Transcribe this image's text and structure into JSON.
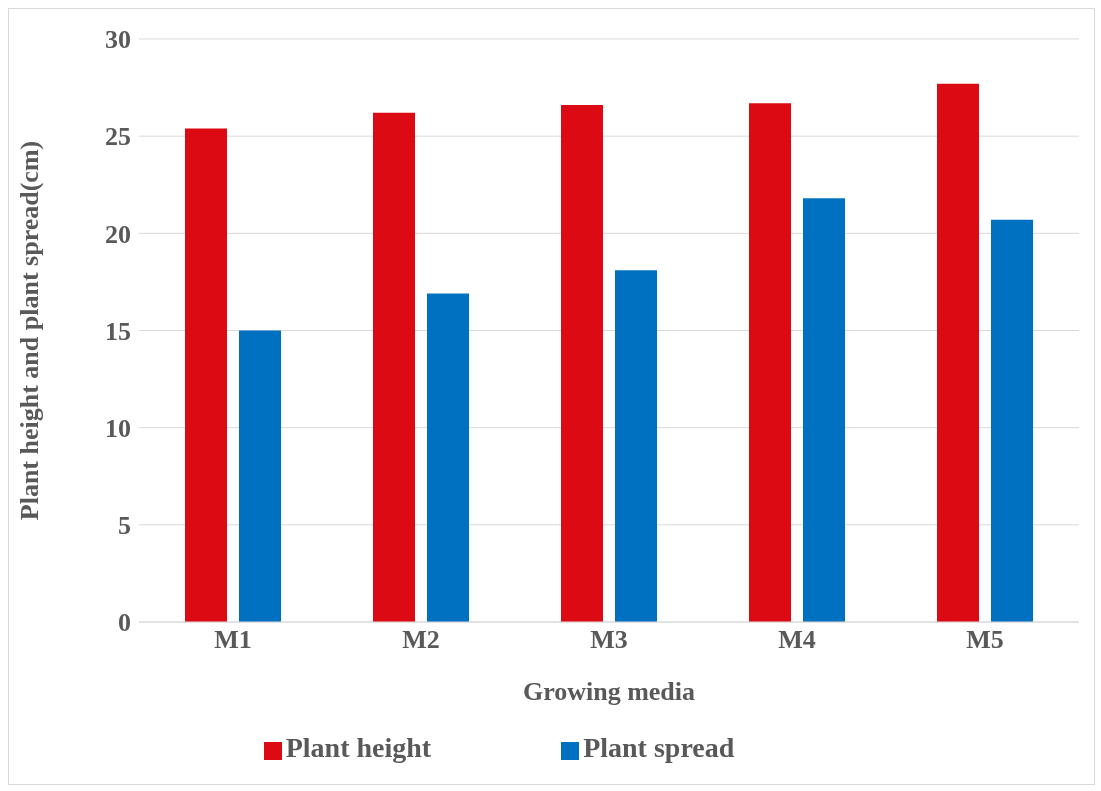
{
  "chart_data": {
    "type": "bar",
    "xlabel": "Growing media",
    "ylabel": "Plant height and plant spread(cm)",
    "categories": [
      "M1",
      "M2",
      "M3",
      "M4",
      "M5"
    ],
    "series": [
      {
        "name": "Plant height",
        "color": "#db0a13",
        "values": [
          25.4,
          26.2,
          26.6,
          26.7,
          27.7
        ]
      },
      {
        "name": "Plant spread",
        "color": "#0070c0",
        "values": [
          15.0,
          16.9,
          18.1,
          21.8,
          20.7
        ]
      }
    ],
    "ylim": [
      0,
      30
    ],
    "yticks": [
      0,
      5,
      10,
      15,
      20,
      25,
      30
    ],
    "grid": "y",
    "legend": "bottom"
  }
}
